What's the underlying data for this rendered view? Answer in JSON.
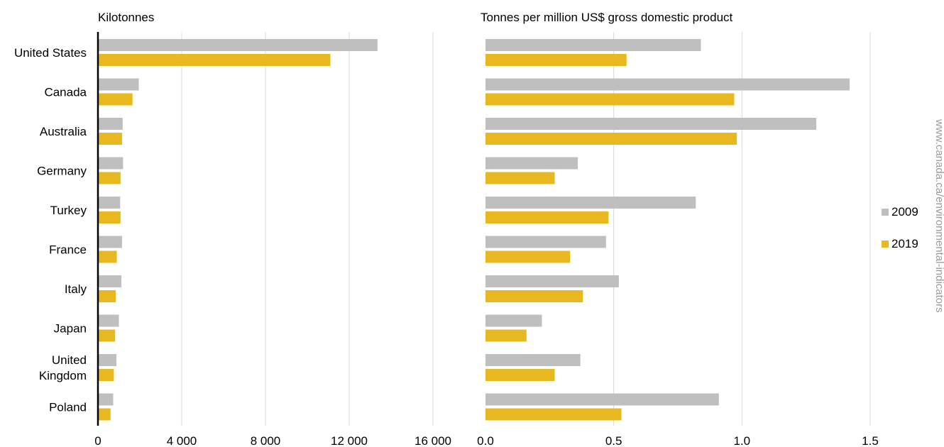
{
  "chart_data": [
    {
      "type": "bar",
      "orientation": "horizontal",
      "title": "Kilotonnes",
      "categories": [
        "United States",
        "Canada",
        "Australia",
        "Germany",
        "Turkey",
        "France",
        "Italy",
        "Japan",
        "United Kingdom",
        "Poland"
      ],
      "category_lines": [
        [
          "United States"
        ],
        [
          "Canada"
        ],
        [
          "Australia"
        ],
        [
          "Germany"
        ],
        [
          "Turkey"
        ],
        [
          "France"
        ],
        [
          "Italy"
        ],
        [
          "Japan"
        ],
        [
          "United",
          "Kingdom"
        ],
        [
          "Poland"
        ]
      ],
      "series": [
        {
          "name": "2009",
          "values": [
            13350,
            1950,
            1180,
            1200,
            1060,
            1150,
            1120,
            1000,
            880,
            730
          ]
        },
        {
          "name": "2019",
          "values": [
            11100,
            1650,
            1150,
            1080,
            1080,
            900,
            850,
            820,
            760,
            600
          ]
        }
      ],
      "xlim": [
        0,
        16000
      ],
      "xticks": [
        0,
        4000,
        8000,
        12000,
        16000
      ],
      "xtick_labels": [
        "0",
        "4 000",
        "8 000",
        "12 000",
        "16 000"
      ],
      "grid": true
    },
    {
      "type": "bar",
      "orientation": "horizontal",
      "title": "Tonnes per million US$ gross domestic product",
      "categories": [
        "United States",
        "Canada",
        "Australia",
        "Germany",
        "Turkey",
        "France",
        "Italy",
        "Japan",
        "United Kingdom",
        "Poland"
      ],
      "series": [
        {
          "name": "2009",
          "values": [
            0.84,
            1.42,
            1.29,
            0.36,
            0.82,
            0.47,
            0.52,
            0.22,
            0.37,
            0.91
          ]
        },
        {
          "name": "2019",
          "values": [
            0.55,
            0.97,
            0.98,
            0.27,
            0.48,
            0.33,
            0.38,
            0.16,
            0.27,
            0.53
          ]
        }
      ],
      "xlim": [
        0,
        1.5
      ],
      "xticks": [
        0,
        0.5,
        1.0,
        1.5
      ],
      "xtick_labels": [
        "0.0",
        "0.5",
        "1.0",
        "1.5"
      ],
      "grid": true
    }
  ],
  "legend": {
    "position": "right",
    "items": [
      {
        "label": "2009",
        "color": "#bfbfbf"
      },
      {
        "label": "2019",
        "color": "#e8b820"
      }
    ]
  },
  "source": "www.canada.ca/environmental-indicators",
  "colors": {
    "s2009": "#bfbfbf",
    "s2019": "#e8b820",
    "grid": "#d9d9d9",
    "axis": "#000000"
  }
}
